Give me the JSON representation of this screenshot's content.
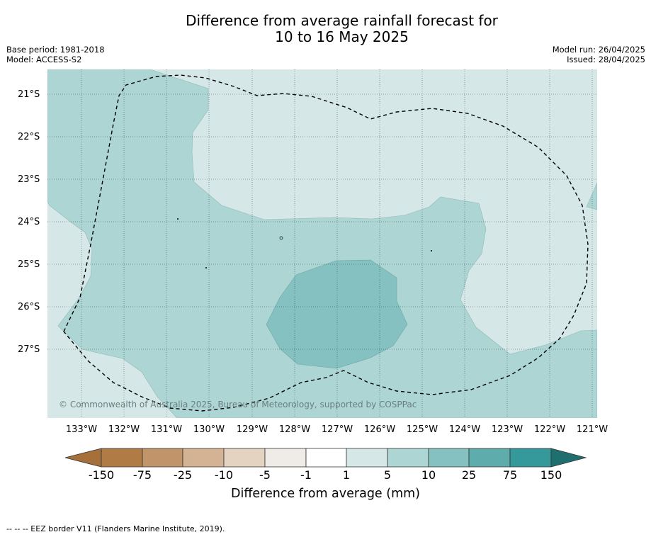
{
  "title_line1": "Difference from average rainfall forecast for",
  "title_line2": "10 to 16 May 2025",
  "base_period": "Base period: 1981-2018",
  "model": "Model: ACCESS-S2",
  "model_run": "Model run: 26/04/2025",
  "issued": "Issued: 28/04/2025",
  "copyright": "© Commonwealth of Australia 2025, Bureau of Meteorology, supported by COSPPac",
  "lat_labels": [
    "21°S",
    "22°S",
    "23°S",
    "24°S",
    "25°S",
    "26°S",
    "27°S"
  ],
  "lon_labels": [
    "133°W",
    "132°W",
    "131°W",
    "130°W",
    "129°W",
    "128°W",
    "127°W",
    "126°W",
    "125°W",
    "124°W",
    "123°W",
    "122°W",
    "121°W"
  ],
  "colorbar": {
    "labels": [
      "-150",
      "-75",
      "-25",
      "-10",
      "-5",
      "-1",
      "1",
      "5",
      "10",
      "25",
      "75",
      "150"
    ],
    "colors": [
      "#a5703a",
      "#b07b45",
      "#c2946a",
      "#d4b294",
      "#e5d3c1",
      "#efebe6",
      "#ffffff",
      "#d5e8e7",
      "#add5d4",
      "#84c1c0",
      "#5eacab",
      "#35999b",
      "#1f6f6e"
    ],
    "title": "Difference from average (mm)"
  },
  "legend_note": "--  --  -- EEZ border V11 (Flanders Marine Institute, 2019)."
}
